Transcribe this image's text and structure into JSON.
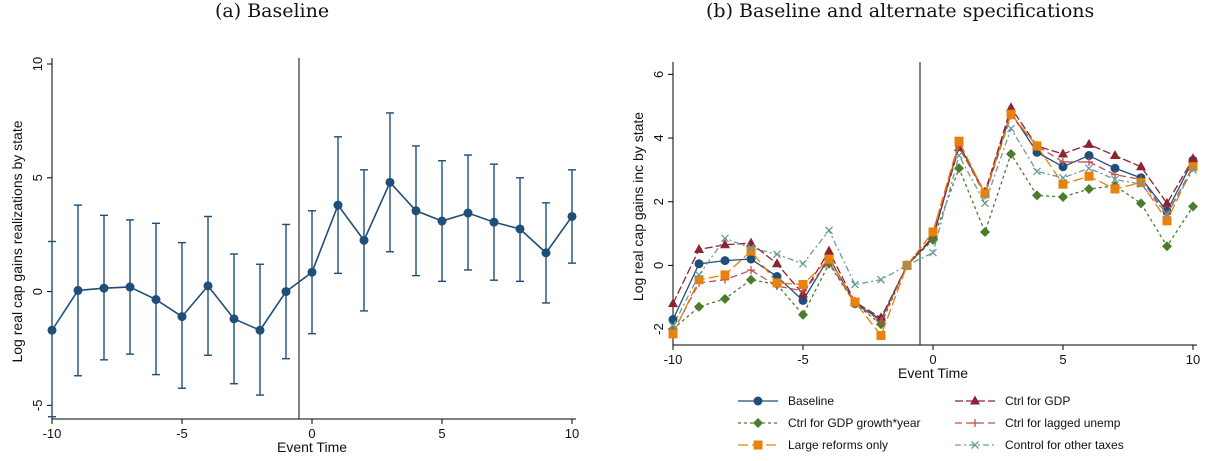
{
  "panels": {
    "a_title": "(a) Baseline",
    "b_title": "(b) Baseline and alternate specifications"
  },
  "chart_data": [
    {
      "type": "line",
      "title": "(a) Baseline",
      "xlabel": "Event Time",
      "ylabel": "Log real cap gains realizations by state",
      "xlim": [
        -10,
        10
      ],
      "ylim": [
        -5.6,
        10
      ],
      "xticks": [
        -10,
        -5,
        0,
        5,
        10
      ],
      "yticks": [
        -5,
        0,
        5,
        10
      ],
      "vline_x": -0.5,
      "grid": false,
      "series": [
        {
          "x": [
            -10,
            -9,
            -8,
            -7,
            -6,
            -5,
            -4,
            -3,
            -2,
            -1,
            0,
            1,
            2,
            3,
            4,
            5,
            6,
            7,
            8,
            9,
            10
          ],
          "values": [
            -1.7,
            0.05,
            0.15,
            0.2,
            -0.35,
            -1.1,
            0.25,
            -1.2,
            -1.7,
            0.0,
            0.85,
            3.8,
            2.25,
            4.8,
            3.55,
            3.1,
            3.45,
            3.05,
            2.75,
            1.7,
            3.3
          ],
          "lower": [
            -5.5,
            -3.7,
            -3.0,
            -2.75,
            -3.65,
            -4.25,
            -2.8,
            -4.05,
            -4.55,
            -2.95,
            -1.85,
            0.8,
            -0.85,
            1.75,
            0.7,
            0.45,
            0.95,
            0.5,
            0.45,
            -0.5,
            1.25
          ],
          "upper": [
            2.2,
            3.8,
            3.35,
            3.15,
            3.0,
            2.15,
            3.3,
            1.65,
            1.2,
            2.95,
            3.55,
            6.8,
            5.35,
            7.85,
            6.4,
            5.75,
            6.0,
            5.6,
            5.0,
            3.9,
            5.35
          ],
          "color": "#1f4e79"
        }
      ]
    },
    {
      "type": "line",
      "title": "(b) Baseline and alternate specifications",
      "xlabel": "Event Time",
      "ylabel": "Log real cap gains inc by state",
      "xlim": [
        -10,
        10
      ],
      "ylim": [
        -2.5,
        6.2
      ],
      "xticks": [
        -10,
        -5,
        0,
        5,
        10
      ],
      "yticks": [
        -2,
        0,
        2,
        4,
        6
      ],
      "vline_x": -0.5,
      "grid": false,
      "legend_position": "bottom",
      "x": [
        -10,
        -9,
        -8,
        -7,
        -6,
        -5,
        -4,
        -3,
        -2,
        -1,
        0,
        1,
        2,
        3,
        4,
        5,
        6,
        7,
        8,
        9,
        10
      ],
      "series": [
        {
          "name": "Baseline",
          "color": "#1f4e79",
          "dash": "",
          "marker": "circle",
          "values": [
            -1.7,
            0.05,
            0.15,
            0.2,
            -0.35,
            -1.1,
            0.25,
            -1.2,
            -1.7,
            0.0,
            0.85,
            3.8,
            2.25,
            4.8,
            3.55,
            3.1,
            3.45,
            3.05,
            2.75,
            1.7,
            3.3
          ]
        },
        {
          "name": "Ctrl for GDP",
          "color": "#8b2331",
          "dash": "8,3",
          "marker": "triangle",
          "values": [
            -1.2,
            0.5,
            0.65,
            0.7,
            0.05,
            -0.9,
            0.45,
            -1.15,
            -1.65,
            0.0,
            0.9,
            3.7,
            2.3,
            4.95,
            3.75,
            3.5,
            3.8,
            3.45,
            3.1,
            1.95,
            3.35
          ]
        },
        {
          "name": "Ctrl for GDP growth*year",
          "color": "#4a7c2a",
          "dash": "3,3",
          "marker": "diamond",
          "values": [
            -2.0,
            -1.3,
            -1.05,
            -0.45,
            -0.6,
            -1.55,
            0.05,
            -1.2,
            -1.85,
            0.0,
            0.8,
            3.05,
            1.05,
            3.5,
            2.2,
            2.15,
            2.4,
            2.5,
            1.95,
            0.6,
            1.85
          ]
        },
        {
          "name": "Ctrl for lagged unemp",
          "color": "#c0504d",
          "dash": "7,4",
          "marker": "plus",
          "values": [
            -2.1,
            -0.55,
            -0.45,
            -0.15,
            -0.65,
            -0.8,
            0.1,
            -1.2,
            -1.75,
            0.0,
            1.05,
            3.75,
            2.2,
            4.7,
            3.75,
            3.25,
            3.25,
            2.85,
            2.7,
            1.6,
            3.1
          ]
        },
        {
          "name": "Large reforms only",
          "color": "#e8820c",
          "dash": "10,4",
          "marker": "square",
          "values": [
            -2.15,
            -0.45,
            -0.3,
            0.45,
            -0.55,
            -0.6,
            0.2,
            -1.15,
            -2.2,
            0.0,
            1.05,
            3.9,
            2.25,
            4.75,
            3.75,
            2.55,
            2.8,
            2.4,
            2.6,
            1.4,
            3.1
          ]
        },
        {
          "name": "Control for other taxes",
          "color": "#6b9a9a",
          "dash": "6,3,2,3",
          "marker": "x",
          "values": [
            -1.9,
            -0.3,
            0.85,
            0.55,
            0.35,
            0.05,
            1.1,
            -0.6,
            -0.45,
            0.0,
            0.4,
            3.45,
            1.95,
            4.3,
            2.95,
            2.75,
            3.05,
            2.7,
            2.55,
            1.6,
            3.0
          ]
        }
      ],
      "legend_order": [
        0,
        1,
        2,
        3,
        4,
        5
      ]
    }
  ]
}
